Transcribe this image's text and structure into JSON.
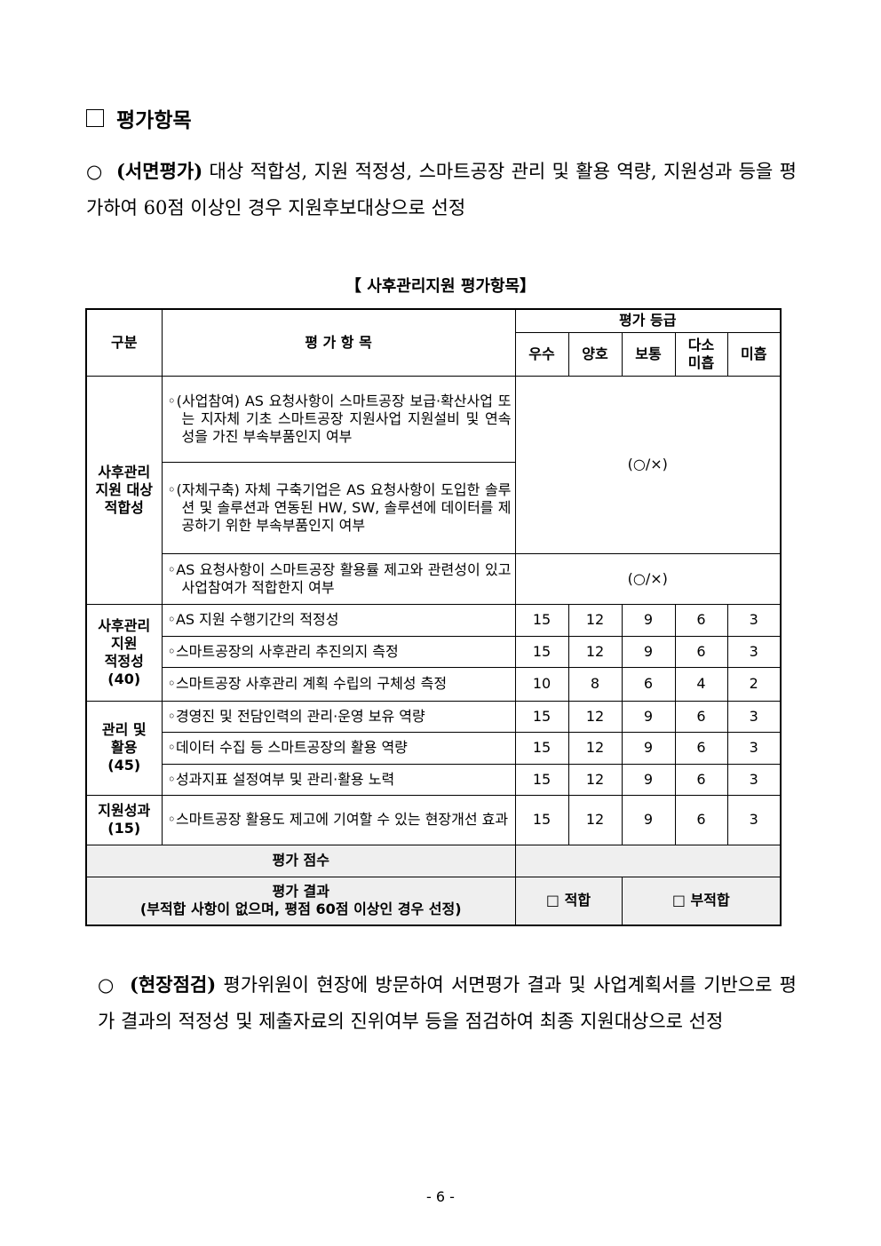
{
  "heading": "평가항목",
  "paragraph1": {
    "bullet": "○",
    "label": "(서면평가)",
    "text": "대상 적합성, 지원 적정성, 스마트공장 관리 및 활용 역량, 지원성과 등을 평가하여 60점 이상인 경우 지원후보대상으로 선정"
  },
  "table_caption": "【 사후관리지원 평가항목】",
  "table": {
    "headers": {
      "category": "구분",
      "item": "평 가 항 목",
      "grade": "평가 등급",
      "grades": [
        "우수",
        "양호",
        "보통",
        "다소\n미흡",
        "미흡"
      ]
    },
    "groups": [
      {
        "category": "사후관리\n지원 대상\n적합성",
        "items": [
          {
            "text": "◦(사업참여) AS 요청사항이 스마트공장 보급·확산사업 또는 지자체 기초 스마트공장 지원사업 지원설비 및 연속성을 가진 부속부품인지 여부"
          },
          {
            "text": "◦(자체구축) 자체 구축기업은 AS 요청사항이 도입한 솔루션 및 솔루션과 연동된 HW, SW, 솔루션에 데이터를 제공하기 위한 부속부품인지 여부"
          },
          {
            "text": "◦AS 요청사항이 스마트공장 활용률 제고와 관련성이 있고 사업참여가 적합한지 여부"
          }
        ],
        "scores": [
          "(○/×)",
          "(○/×)"
        ]
      },
      {
        "category": "사후관리\n지원\n적정성\n(40)",
        "items": [
          {
            "text": "◦AS 지원 수행기간의 적정성",
            "scores": [
              "15",
              "12",
              "9",
              "6",
              "3"
            ]
          },
          {
            "text": "◦스마트공장의 사후관리 추진의지 측정",
            "scores": [
              "15",
              "12",
              "9",
              "6",
              "3"
            ]
          },
          {
            "text": "◦스마트공장 사후관리 계획 수립의 구체성 측정",
            "scores": [
              "10",
              "8",
              "6",
              "4",
              "2"
            ]
          }
        ]
      },
      {
        "category": "관리 및\n활용\n(45)",
        "items": [
          {
            "text": "◦경영진 및 전담인력의 관리·운영 보유 역량",
            "scores": [
              "15",
              "12",
              "9",
              "6",
              "3"
            ]
          },
          {
            "text": "◦데이터 수집 등 스마트공장의 활용 역량",
            "scores": [
              "15",
              "12",
              "9",
              "6",
              "3"
            ]
          },
          {
            "text": "◦성과지표 설정여부 및 관리·활용 노력",
            "scores": [
              "15",
              "12",
              "9",
              "6",
              "3"
            ]
          }
        ]
      },
      {
        "category": "지원성과\n(15)",
        "items": [
          {
            "text": "◦스마트공장 활용도 제고에 기여할 수 있는 현장개선 효과",
            "scores": [
              "15",
              "12",
              "9",
              "6",
              "3"
            ]
          }
        ]
      }
    ],
    "score_label": "평가 점수",
    "result_label": "평가 결과",
    "result_note": "(부적합 사항이 없으며, 평점 60점 이상인 경우 선정)",
    "pass_option": "□ 적합",
    "fail_option": "□ 부적합"
  },
  "paragraph2": {
    "bullet": "○",
    "label": "(현장점검)",
    "text": "평가위원이 현장에 방문하여 서면평가 결과 및 사업계획서를 기반으로 평가 결과의 적정성 및 제출자료의 진위여부 등을 점검하여 최종 지원대상으로 선정"
  },
  "page_number": "- 6 -"
}
